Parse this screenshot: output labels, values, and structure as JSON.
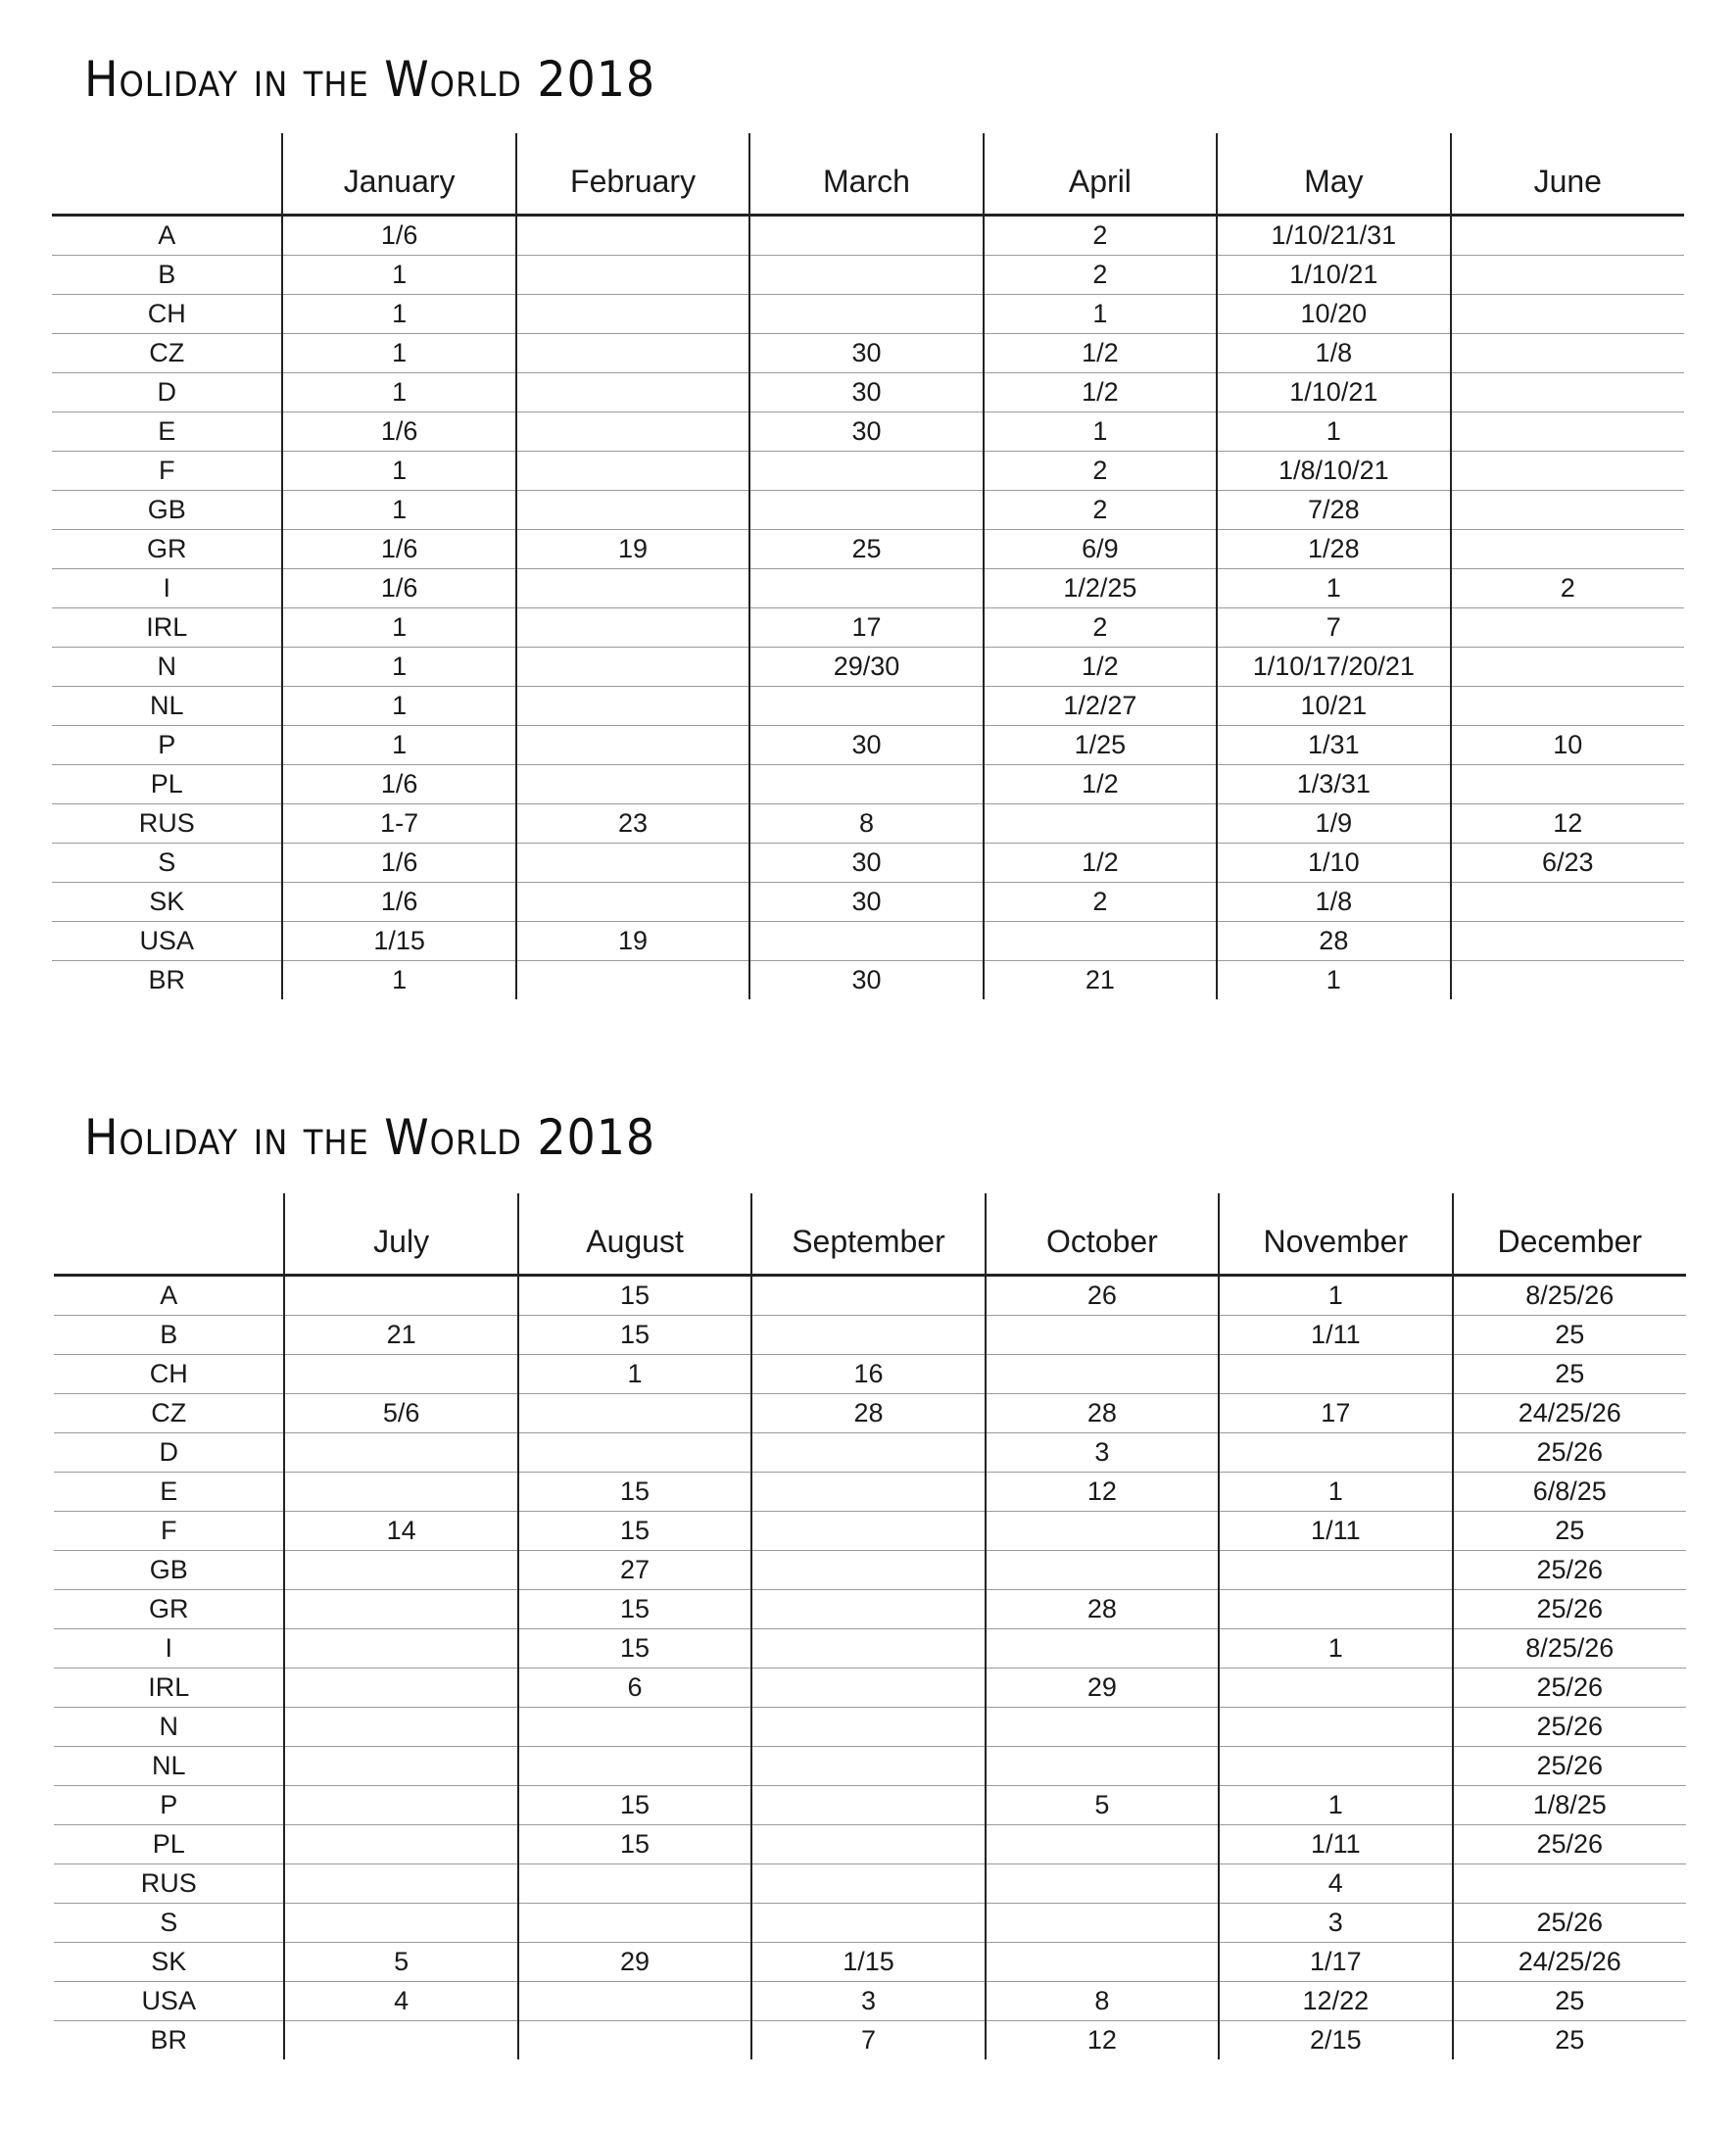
{
  "tables": [
    {
      "title": "Holiday in the World 2018",
      "months": [
        "January",
        "February",
        "March",
        "April",
        "May",
        "June"
      ],
      "rows": [
        {
          "country": "A",
          "values": [
            "1/6",
            "",
            "",
            "2",
            "1/10/21/31",
            ""
          ]
        },
        {
          "country": "B",
          "values": [
            "1",
            "",
            "",
            "2",
            "1/10/21",
            ""
          ]
        },
        {
          "country": "CH",
          "values": [
            "1",
            "",
            "",
            "1",
            "10/20",
            ""
          ]
        },
        {
          "country": "CZ",
          "values": [
            "1",
            "",
            "30",
            "1/2",
            "1/8",
            ""
          ]
        },
        {
          "country": "D",
          "values": [
            "1",
            "",
            "30",
            "1/2",
            "1/10/21",
            ""
          ]
        },
        {
          "country": "E",
          "values": [
            "1/6",
            "",
            "30",
            "1",
            "1",
            ""
          ]
        },
        {
          "country": "F",
          "values": [
            "1",
            "",
            "",
            "2",
            "1/8/10/21",
            ""
          ]
        },
        {
          "country": "GB",
          "values": [
            "1",
            "",
            "",
            "2",
            "7/28",
            ""
          ]
        },
        {
          "country": "GR",
          "values": [
            "1/6",
            "19",
            "25",
            "6/9",
            "1/28",
            ""
          ]
        },
        {
          "country": "I",
          "values": [
            "1/6",
            "",
            "",
            "1/2/25",
            "1",
            "2"
          ]
        },
        {
          "country": "IRL",
          "values": [
            "1",
            "",
            "17",
            "2",
            "7",
            ""
          ]
        },
        {
          "country": "N",
          "values": [
            "1",
            "",
            "29/30",
            "1/2",
            "1/10/17/20/21",
            ""
          ]
        },
        {
          "country": "NL",
          "values": [
            "1",
            "",
            "",
            "1/2/27",
            "10/21",
            ""
          ]
        },
        {
          "country": "P",
          "values": [
            "1",
            "",
            "30",
            "1/25",
            "1/31",
            "10"
          ]
        },
        {
          "country": "PL",
          "values": [
            "1/6",
            "",
            "",
            "1/2",
            "1/3/31",
            ""
          ]
        },
        {
          "country": "RUS",
          "values": [
            "1-7",
            "23",
            "8",
            "",
            "1/9",
            "12"
          ]
        },
        {
          "country": "S",
          "values": [
            "1/6",
            "",
            "30",
            "1/2",
            "1/10",
            "6/23"
          ]
        },
        {
          "country": "SK",
          "values": [
            "1/6",
            "",
            "30",
            "2",
            "1/8",
            ""
          ]
        },
        {
          "country": "USA",
          "values": [
            "1/15",
            "19",
            "",
            "",
            "28",
            ""
          ]
        },
        {
          "country": "BR",
          "values": [
            "1",
            "",
            "30",
            "21",
            "1",
            ""
          ]
        }
      ]
    },
    {
      "title": "Holiday in the World 2018",
      "months": [
        "July",
        "August",
        "September",
        "October",
        "November",
        "December"
      ],
      "rows": [
        {
          "country": "A",
          "values": [
            "",
            "15",
            "",
            "26",
            "1",
            "8/25/26"
          ]
        },
        {
          "country": "B",
          "values": [
            "21",
            "15",
            "",
            "",
            "1/11",
            "25"
          ]
        },
        {
          "country": "CH",
          "values": [
            "",
            "1",
            "16",
            "",
            "",
            "25"
          ]
        },
        {
          "country": "CZ",
          "values": [
            "5/6",
            "",
            "28",
            "28",
            "17",
            "24/25/26"
          ]
        },
        {
          "country": "D",
          "values": [
            "",
            "",
            "",
            "3",
            "",
            "25/26"
          ]
        },
        {
          "country": "E",
          "values": [
            "",
            "15",
            "",
            "12",
            "1",
            "6/8/25"
          ]
        },
        {
          "country": "F",
          "values": [
            "14",
            "15",
            "",
            "",
            "1/11",
            "25"
          ]
        },
        {
          "country": "GB",
          "values": [
            "",
            "27",
            "",
            "",
            "",
            "25/26"
          ]
        },
        {
          "country": "GR",
          "values": [
            "",
            "15",
            "",
            "28",
            "",
            "25/26"
          ]
        },
        {
          "country": "I",
          "values": [
            "",
            "15",
            "",
            "",
            "1",
            "8/25/26"
          ]
        },
        {
          "country": "IRL",
          "values": [
            "",
            "6",
            "",
            "29",
            "",
            "25/26"
          ]
        },
        {
          "country": "N",
          "values": [
            "",
            "",
            "",
            "",
            "",
            "25/26"
          ]
        },
        {
          "country": "NL",
          "values": [
            "",
            "",
            "",
            "",
            "",
            "25/26"
          ]
        },
        {
          "country": "P",
          "values": [
            "",
            "15",
            "",
            "5",
            "1",
            "1/8/25"
          ]
        },
        {
          "country": "PL",
          "values": [
            "",
            "15",
            "",
            "",
            "1/11",
            "25/26"
          ]
        },
        {
          "country": "RUS",
          "values": [
            "",
            "",
            "",
            "",
            "4",
            ""
          ]
        },
        {
          "country": "S",
          "values": [
            "",
            "",
            "",
            "",
            "3",
            "25/26"
          ]
        },
        {
          "country": "SK",
          "values": [
            "5",
            "29",
            "1/15",
            "",
            "1/17",
            "24/25/26"
          ]
        },
        {
          "country": "USA",
          "values": [
            "4",
            "",
            "3",
            "8",
            "12/22",
            "25"
          ]
        },
        {
          "country": "BR",
          "values": [
            "",
            "",
            "7",
            "12",
            "2/15",
            "25"
          ]
        }
      ]
    }
  ]
}
